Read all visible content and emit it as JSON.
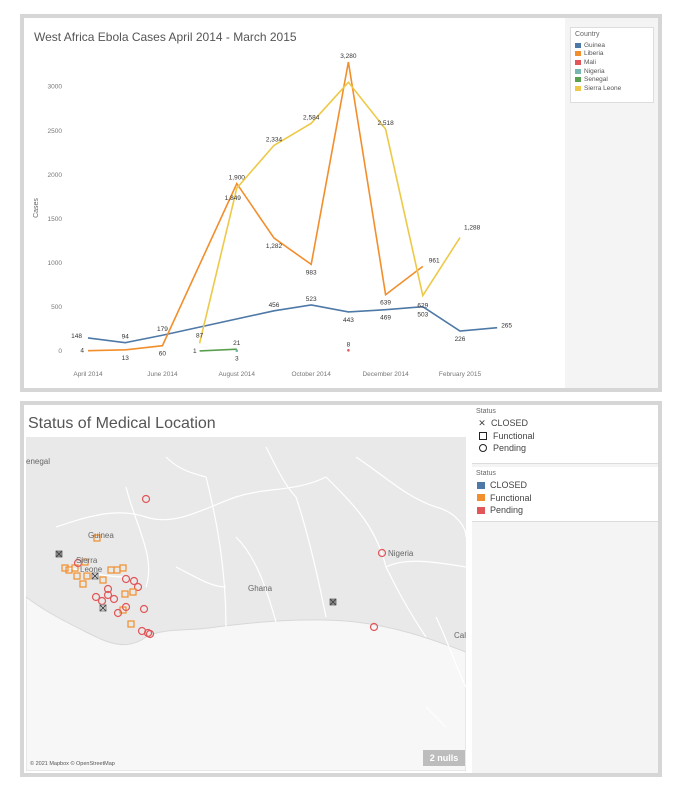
{
  "line_chart": {
    "title": "West Africa Ebola Cases April 2014 - March 2015",
    "legend_title": "Country",
    "colors": {
      "Guinea": "#4e79a7",
      "Liberia": "#f28e2b",
      "Mali": "#e15759",
      "Nigeria": "#76b7b2",
      "Senegal": "#59a14f",
      "Sierra Leone": "#edc948"
    }
  },
  "chart_data": [
    {
      "type": "line",
      "title": "West Africa Ebola Cases April 2014 - March 2015",
      "xlabel": "",
      "ylabel": "Cases",
      "x": [
        "2014-04",
        "2014-05",
        "2014-06",
        "2014-07",
        "2014-08",
        "2014-09",
        "2014-10",
        "2014-11",
        "2014-12",
        "2015-01",
        "2015-02",
        "2015-03"
      ],
      "x_tick_labels": [
        "April 2014",
        "June 2014",
        "August 2014",
        "October 2014",
        "December 2014",
        "February 2015"
      ],
      "ylim": [
        0,
        3300
      ],
      "y_ticks": [
        0,
        500,
        1000,
        1500,
        2000,
        2500,
        3000
      ],
      "grid": false,
      "legend": "top-right",
      "series": [
        {
          "name": "Guinea",
          "values": [
            148,
            94,
            179,
            null,
            null,
            456,
            523,
            443,
            469,
            503,
            226,
            265
          ],
          "labels": [
            "148",
            "94",
            "179",
            null,
            null,
            "456",
            "523",
            "443",
            "469",
            "503",
            "226",
            "265"
          ]
        },
        {
          "name": "Liberia",
          "values": [
            4,
            13,
            60,
            null,
            1900,
            1282,
            983,
            3280,
            639,
            961,
            null,
            null
          ],
          "labels": [
            "4",
            "13",
            "60",
            null,
            "1,900",
            "1,282",
            "983",
            "3,280",
            "639",
            "961",
            null,
            null
          ]
        },
        {
          "name": "Mali",
          "values": [
            null,
            null,
            null,
            null,
            null,
            null,
            null,
            8,
            null,
            null,
            null,
            null
          ],
          "labels": [
            null,
            null,
            null,
            null,
            null,
            null,
            null,
            "8",
            null,
            null,
            null,
            null
          ]
        },
        {
          "name": "Nigeria",
          "values": [
            null,
            null,
            null,
            null,
            3,
            null,
            null,
            null,
            null,
            null,
            null,
            null
          ],
          "labels": [
            null,
            null,
            null,
            null,
            "3",
            null,
            null,
            null,
            null,
            null,
            null,
            null
          ]
        },
        {
          "name": "Senegal",
          "values": [
            null,
            null,
            null,
            1,
            21,
            null,
            null,
            null,
            null,
            null,
            null,
            null
          ],
          "labels": [
            null,
            null,
            null,
            "1",
            "21",
            null,
            null,
            null,
            null,
            null,
            null,
            null
          ]
        },
        {
          "name": "Sierra Leone",
          "values": [
            null,
            null,
            null,
            87,
            1849,
            2334,
            2584,
            3050,
            2518,
            629,
            1288,
            null
          ],
          "labels": [
            null,
            null,
            null,
            "87",
            "1,849",
            "2,334",
            "2,584",
            null,
            "2,518",
            "629",
            "1,288",
            null
          ]
        }
      ]
    }
  ],
  "map": {
    "title": "Status of Medical Location",
    "shape_legend_title": "Status",
    "shape_legend": [
      "CLOSED",
      "Functional",
      "Pending"
    ],
    "color_legend_title": "Status",
    "color_legend": [
      {
        "label": "CLOSED",
        "color": "#4e79a7"
      },
      {
        "label": "Functional",
        "color": "#f28e2b"
      },
      {
        "label": "Pending",
        "color": "#e15759"
      }
    ],
    "labels": {
      "senegal": "enegal",
      "guinea": "Guinea",
      "sierra": "Sierra",
      "leone": "Leone",
      "ghana": "Ghana",
      "nigeria": "Nigeria",
      "cam": "Cal"
    },
    "attribution": "© 2021 Mapbox © OpenStreetMap",
    "nulls": "2 nulls"
  }
}
